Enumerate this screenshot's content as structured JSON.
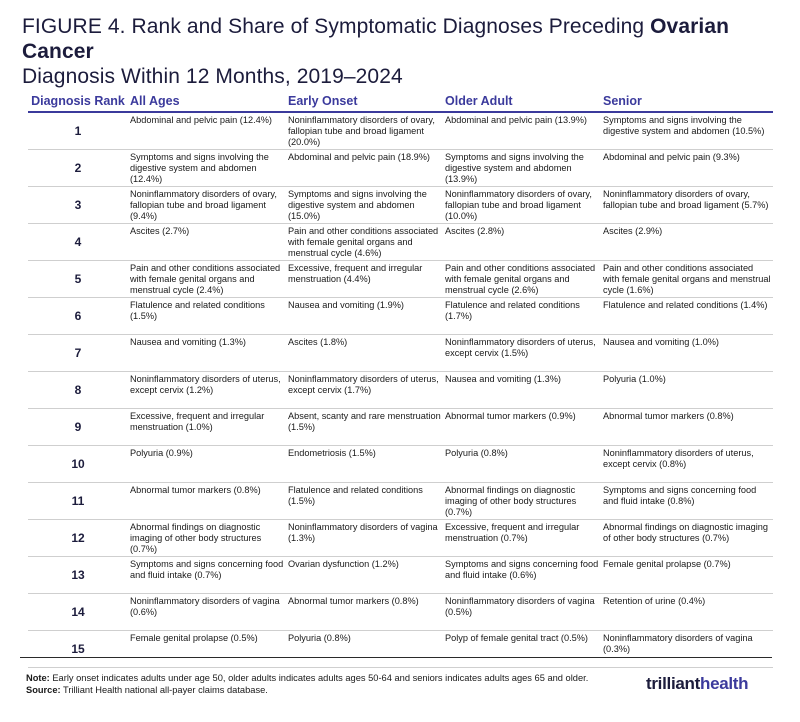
{
  "figure": {
    "title_plain": "FIGURE 4. Rank and Share of Symptomatic Diagnoses Preceding ",
    "title_bold": "Ovarian Cancer",
    "title_rest": "Diagnosis Within 12 Months, 2019–2024"
  },
  "table": {
    "headers": [
      "Diagnosis Rank",
      "All Ages",
      "Early Onset",
      "Older Adult",
      "Senior"
    ],
    "rows": [
      {
        "rank": "1",
        "all": "Abdominal and pelvic pain (12.4%)",
        "early": "Noninflammatory disorders of ovary, fallopian tube and broad ligament (20.0%)",
        "older": "Abdominal and pelvic pain (13.9%)",
        "senior": "Symptoms and signs involving the digestive system and abdomen (10.5%)"
      },
      {
        "rank": "2",
        "all": "Symptoms and signs involving the digestive system and abdomen (12.4%)",
        "early": "Abdominal and pelvic pain (18.9%)",
        "older": "Symptoms and signs involving the digestive system and abdomen (13.9%)",
        "senior": "Abdominal and pelvic pain (9.3%)"
      },
      {
        "rank": "3",
        "all": "Noninflammatory disorders of ovary, fallopian tube and broad ligament (9.4%)",
        "early": "Symptoms and signs involving the digestive system and abdomen (15.0%)",
        "older": "Noninflammatory disorders of ovary, fallopian tube and broad ligament (10.0%)",
        "senior": "Noninflammatory disorders of ovary, fallopian tube and broad ligament (5.7%)"
      },
      {
        "rank": "4",
        "all": "Ascites (2.7%)",
        "early": "Pain and other conditions associated with female genital organs and menstrual cycle (4.6%)",
        "older": "Ascites (2.8%)",
        "senior": "Ascites (2.9%)"
      },
      {
        "rank": "5",
        "all": "Pain and other conditions associated with female genital organs and menstrual cycle (2.4%)",
        "early": "Excessive, frequent and irregular menstruation (4.4%)",
        "older": "Pain and other conditions associated with female genital organs and menstrual cycle (2.6%)",
        "senior": "Pain and other conditions associated with female genital organs and menstrual cycle (1.6%)"
      },
      {
        "rank": "6",
        "all": "Flatulence and related conditions (1.5%)",
        "early": "Nausea and vomiting (1.9%)",
        "older": "Flatulence and related conditions (1.7%)",
        "senior": "Flatulence and related conditions (1.4%)"
      },
      {
        "rank": "7",
        "all": "Nausea and vomiting (1.3%)",
        "early": "Ascites (1.8%)",
        "older": "Noninflammatory disorders of uterus, except cervix (1.5%)",
        "senior": "Nausea and vomiting (1.0%)"
      },
      {
        "rank": "8",
        "all": "Noninflammatory disorders of uterus, except cervix (1.2%)",
        "early": "Noninflammatory disorders of uterus, except cervix (1.7%)",
        "older": "Nausea and vomiting (1.3%)",
        "senior": "Polyuria (1.0%)"
      },
      {
        "rank": "9",
        "all": "Excessive, frequent and irregular menstruation (1.0%)",
        "early": "Absent, scanty and rare menstruation (1.5%)",
        "older": "Abnormal tumor markers (0.9%)",
        "senior": "Abnormal tumor markers (0.8%)"
      },
      {
        "rank": "10",
        "all": "Polyuria (0.9%)",
        "early": "Endometriosis (1.5%)",
        "older": "Polyuria (0.8%)",
        "senior": "Noninflammatory disorders of uterus, except cervix (0.8%)"
      },
      {
        "rank": "11",
        "all": "Abnormal tumor markers (0.8%)",
        "early": "Flatulence and related conditions (1.5%)",
        "older": "Abnormal findings on diagnostic imaging of other body structures (0.7%)",
        "senior": "Symptoms and signs concerning food and fluid intake (0.8%)"
      },
      {
        "rank": "12",
        "all": "Abnormal findings on diagnostic imaging of other body structures (0.7%)",
        "early": "Noninflammatory disorders of vagina (1.3%)",
        "older": "Excessive, frequent and irregular menstruation (0.7%)",
        "senior": "Abnormal findings on diagnostic imaging of other body structures (0.7%)"
      },
      {
        "rank": "13",
        "all": "Symptoms and signs concerning food and fluid intake (0.7%)",
        "early": "Ovarian dysfunction (1.2%)",
        "older": "Symptoms and signs concerning food and fluid intake (0.6%)",
        "senior": "Female genital prolapse (0.7%)"
      },
      {
        "rank": "14",
        "all": "Noninflammatory disorders of vagina (0.6%)",
        "early": "Abnormal tumor markers (0.8%)",
        "older": "Noninflammatory disorders of vagina (0.5%)",
        "senior": "Retention of urine (0.4%)"
      },
      {
        "rank": "15",
        "all": "Female genital prolapse (0.5%)",
        "early": "Polyuria (0.8%)",
        "older": "Polyp of female genital tract (0.5%)",
        "senior": "Noninflammatory disorders of vagina (0.3%)"
      }
    ]
  },
  "footer": {
    "note_label": "Note:",
    "note_text": " Early onset indicates adults under age 50, older adults indicates adults ages 50-64 and seniors indicates adults ages 65 and older.",
    "source_label": "Source:",
    "source_text": " Trilliant Health national all-payer claims database.",
    "logo_part1": "trilliant",
    "logo_part2": "health"
  },
  "colors": {
    "header_accent": "#3b3a9c",
    "title": "#1c1c3c"
  }
}
